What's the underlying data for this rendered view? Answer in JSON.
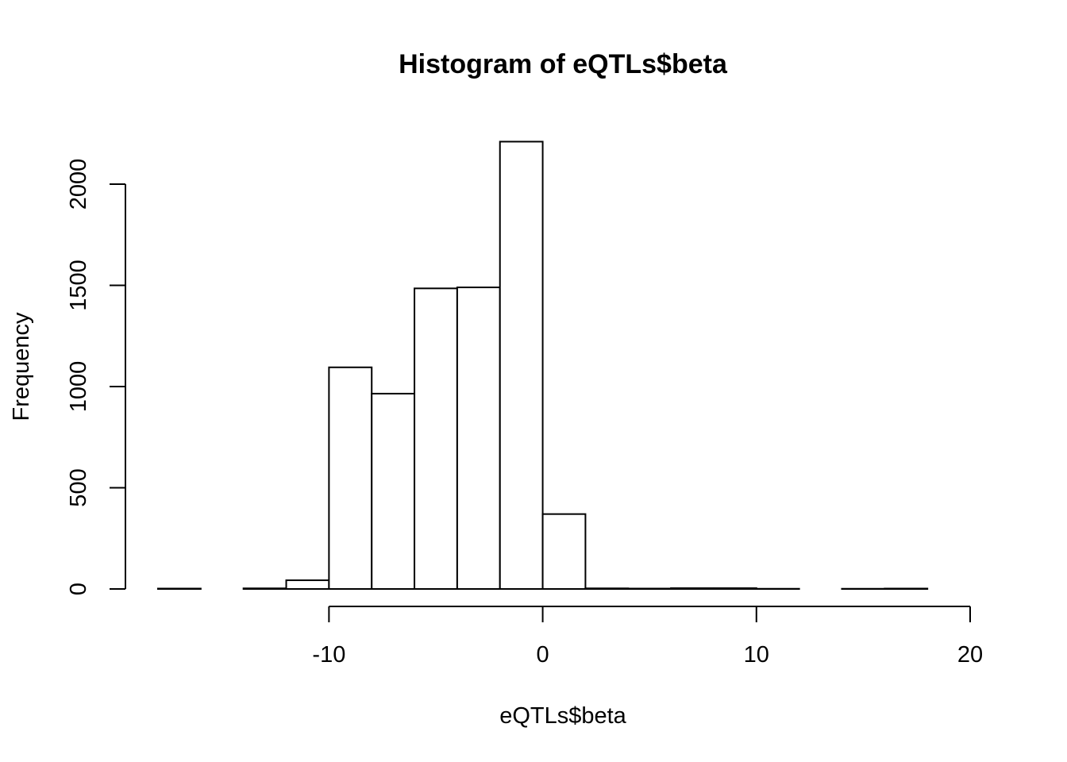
{
  "chart_data": {
    "type": "bar",
    "title": "Histogram of eQTLs$beta",
    "xlabel": "eQTLs$beta",
    "ylabel": "Frequency",
    "bin_edges": [
      -18,
      -16,
      -14,
      -12,
      -10,
      -8,
      -6,
      -4,
      -2,
      0,
      2,
      4,
      6,
      8,
      10,
      12,
      14,
      16,
      18,
      20
    ],
    "values": [
      2,
      0,
      3,
      43,
      1095,
      965,
      1485,
      1490,
      2210,
      370,
      3,
      2,
      4,
      4,
      1,
      0,
      1,
      2,
      0
    ],
    "xlim": [
      -18,
      20
    ],
    "ylim": [
      0,
      2210
    ],
    "x_ticks": [
      -10,
      0,
      10,
      20
    ],
    "y_ticks": [
      0,
      500,
      1000,
      1500,
      2000
    ],
    "x_tick_labels": [
      "-10",
      "0",
      "10",
      "20"
    ],
    "y_tick_labels": [
      "0",
      "500",
      "1000",
      "1500",
      "2000"
    ],
    "grid": false,
    "colors": {
      "bar_fill": "#ffffff",
      "bar_stroke": "#000000"
    }
  }
}
